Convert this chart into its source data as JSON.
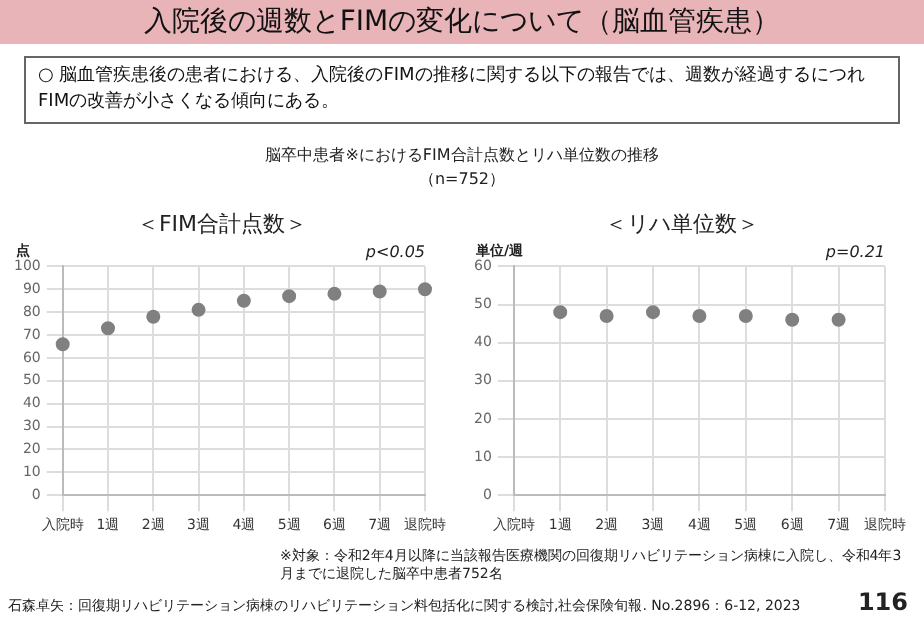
{
  "chart_data": [
    {
      "type": "other",
      "title": "入院後の週数とFIMの変化について（脳血管疾患）",
      "annotations": [
        "○ 脳血管疾患後の患者における、入院後のFIMの推移に関する以下の報告では、週数が経過するにつれFIMの改善が小さくなる傾向にある。",
        "脳卒中患者※におけるFIM合計点数とリハ単位数の推移",
        "（n=752）"
      ]
    },
    {
      "type": "scatter",
      "title": "＜FIM合計点数＞",
      "ylabel": "点",
      "categories": [
        "入院時",
        "1週",
        "2週",
        "3週",
        "4週",
        "5週",
        "6週",
        "7週",
        "退院時"
      ],
      "series": [
        {
          "color": "#808080",
          "values": [
            66,
            73,
            78,
            81,
            85,
            87,
            88,
            89,
            90
          ]
        }
      ],
      "ylim": [
        0,
        100
      ],
      "yticks": [
        0,
        10,
        20,
        30,
        40,
        50,
        60,
        70,
        80,
        90,
        100
      ],
      "grid": true,
      "marker": "circle",
      "annotations": [
        "p<0.05"
      ]
    },
    {
      "type": "scatter",
      "title": "＜リハ単位数＞",
      "ylabel": "単位/週",
      "categories": [
        "入院時",
        "1週",
        "2週",
        "3週",
        "4週",
        "5週",
        "6週",
        "7週",
        "退院時"
      ],
      "series": [
        {
          "color": "#808080",
          "values": [
            null,
            48,
            47,
            48,
            47,
            47,
            46,
            46,
            null
          ]
        }
      ],
      "ylim": [
        0,
        60
      ],
      "yticks": [
        0,
        10,
        20,
        30,
        40,
        50,
        60
      ],
      "grid": true,
      "marker": "circle",
      "annotations": [
        "p=0.21"
      ]
    },
    {
      "type": "other",
      "annotations": [
        "※対象：令和2年4月以降に当該報告医療機関の回復期リハビリテーション病棟に入院し、令和4年3月までに退院した脳卒中患者752名",
        "石森卓矢：回復期リハビリテーション病棟のリハビリテーション料包括化に関する検討,社会保険旬報. No.2896：6-12, 2023",
        "116"
      ]
    }
  ]
}
